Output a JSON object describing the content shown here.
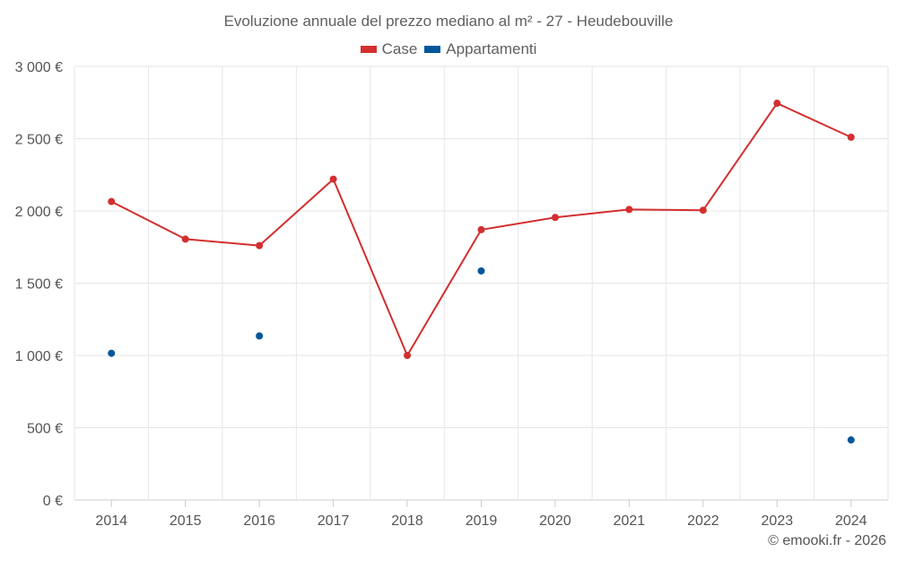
{
  "chart_data": {
    "type": "line",
    "title": "Evoluzione annuale del prezzo mediano al m² - 27 - Heudebouville",
    "xlabel": "",
    "ylabel": "",
    "categories": [
      "2014",
      "2015",
      "2016",
      "2017",
      "2018",
      "2019",
      "2020",
      "2021",
      "2022",
      "2023",
      "2024"
    ],
    "ylim": [
      0,
      3000
    ],
    "yticks": [
      0,
      500,
      1000,
      1500,
      2000,
      2500,
      3000
    ],
    "ytick_labels": [
      "0 €",
      "500 €",
      "1 000 €",
      "1 500 €",
      "2 000 €",
      "2 500 €",
      "3 000 €"
    ],
    "grid": true,
    "legend_position": "top-center",
    "series": [
      {
        "name": "Case",
        "color": "#d32f2f",
        "style": "line",
        "values": [
          2065,
          1805,
          1760,
          2220,
          1000,
          1870,
          1955,
          2010,
          2005,
          2745,
          2510
        ]
      },
      {
        "name": "Appartamenti",
        "color": "#01579b",
        "style": "markers",
        "values": [
          1015,
          null,
          1135,
          null,
          null,
          1585,
          null,
          null,
          null,
          null,
          415
        ]
      }
    ]
  },
  "credit": "© emooki.fr - 2026"
}
